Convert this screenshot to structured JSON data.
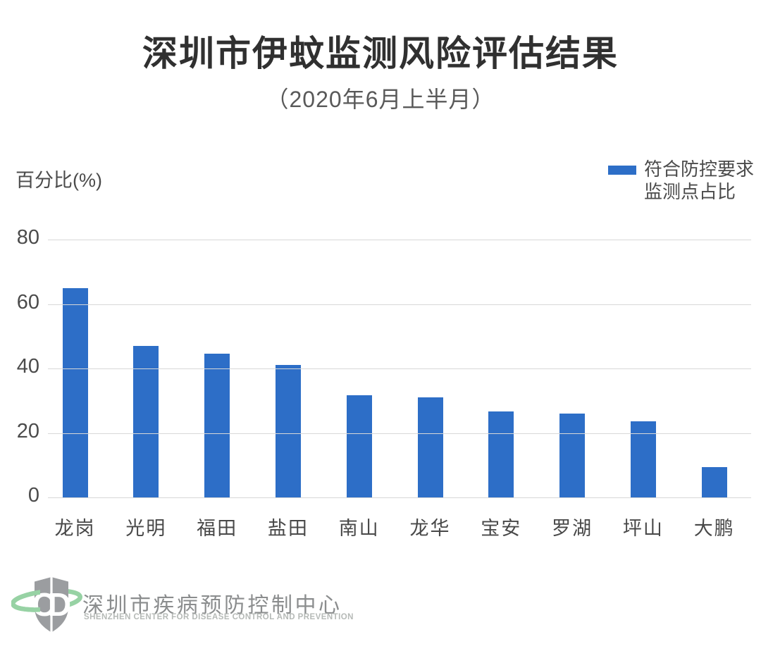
{
  "page": {
    "title": "深圳市伊蚊监测风险评估结果",
    "subtitle": "（2020年6月上半月）"
  },
  "chart_data": {
    "type": "bar",
    "title": "深圳市伊蚊监测风险评估结果",
    "subtitle": "（2020年6月上半月）",
    "ylabel": "百分比(%)",
    "categories": [
      "龙岗",
      "光明",
      "福田",
      "盐田",
      "南山",
      "龙华",
      "宝安",
      "罗湖",
      "坪山",
      "大鹏"
    ],
    "values": [
      65,
      47,
      44.6,
      41,
      31.7,
      31.1,
      26.7,
      26,
      23.6,
      9.4
    ],
    "yticks": [
      0,
      20,
      40,
      60,
      80
    ],
    "ylim": [
      0,
      86
    ],
    "grid": true,
    "legend": [
      "符合防控要求",
      "监测点占比"
    ],
    "legend_position": "top-right",
    "bar_color": "#2D6EC7"
  },
  "legend": {
    "line1": "符合防控要求",
    "line2": "监测点占比"
  },
  "footer": {
    "logo": "shenzhen-cdc-shield-logo",
    "logo_letters_left": "C",
    "logo_letters_right": "D",
    "org_cn": "深圳市疾病预防控制中心",
    "org_en": "SHENZHEN CENTER FOR DISEASE CONTROL AND PREVENTION"
  },
  "colors": {
    "bar": "#2D6EC7",
    "title_text": "#303030",
    "subtitle_text": "#595959",
    "axis_text": "#4B4B4B",
    "gridline": "#D8D8D8",
    "footer_cn": "#8B8D8E",
    "footer_en": "#B6BAB7",
    "logo_shield": "#9B9DA0",
    "logo_ring": "#97D2A4"
  }
}
